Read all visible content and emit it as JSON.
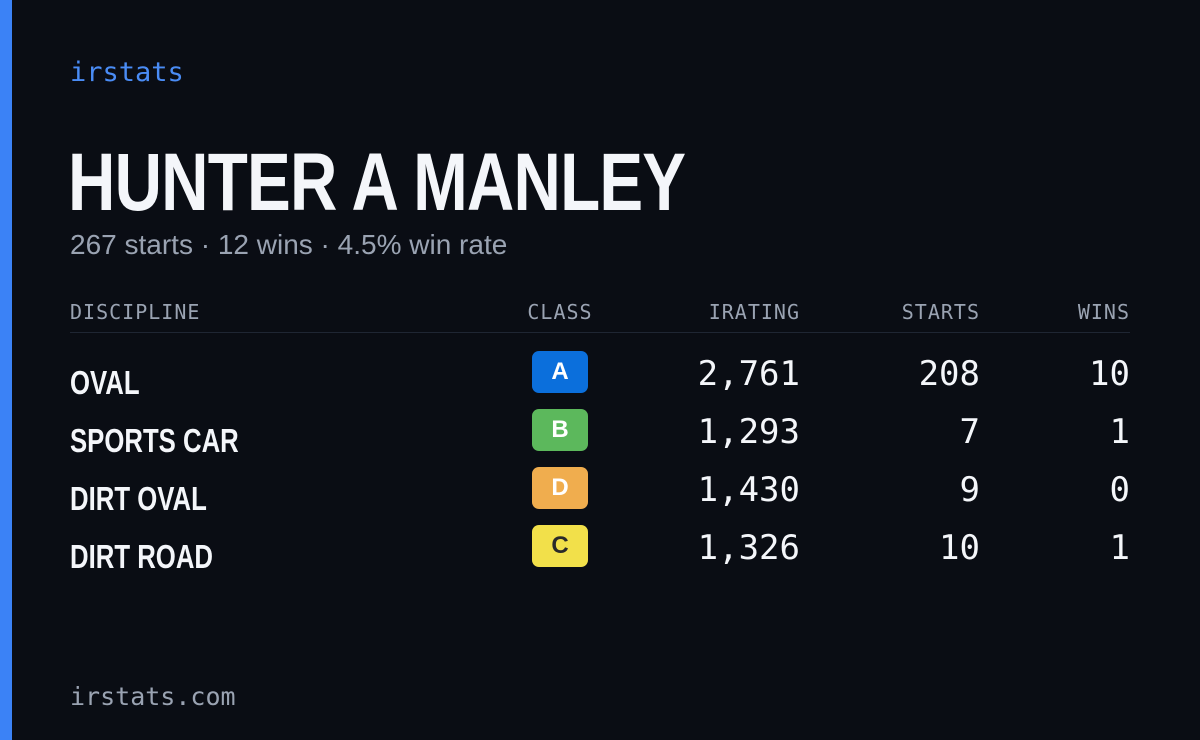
{
  "brand": "irstats",
  "player": {
    "name": "HUNTER A MANLEY",
    "summary": "267 starts · 12 wins · 4.5% win rate"
  },
  "table": {
    "headers": {
      "discipline": "DISCIPLINE",
      "class": "CLASS",
      "irating": "IRATING",
      "starts": "STARTS",
      "wins": "WINS"
    },
    "rows": [
      {
        "discipline": "OVAL",
        "class": "A",
        "class_color": "#0b6fdc",
        "class_text_color": "#ffffff",
        "irating": "2,761",
        "starts": "208",
        "wins": "10"
      },
      {
        "discipline": "SPORTS CAR",
        "class": "B",
        "class_color": "#5cb85c",
        "class_text_color": "#ffffff",
        "irating": "1,293",
        "starts": "7",
        "wins": "1"
      },
      {
        "discipline": "DIRT OVAL",
        "class": "D",
        "class_color": "#f0ad4e",
        "class_text_color": "#ffffff",
        "irating": "1,430",
        "starts": "9",
        "wins": "0"
      },
      {
        "discipline": "DIRT ROAD",
        "class": "C",
        "class_color": "#f2e04a",
        "class_text_color": "#2a2a2a",
        "irating": "1,326",
        "starts": "10",
        "wins": "1"
      }
    ]
  },
  "footer": "irstats.com",
  "colors": {
    "background": "#0a0d14",
    "accent": "#3b82f6",
    "brand": "#4a8cf5",
    "muted_text": "#9aa3b2",
    "primary_text": "#f4f6fa"
  }
}
